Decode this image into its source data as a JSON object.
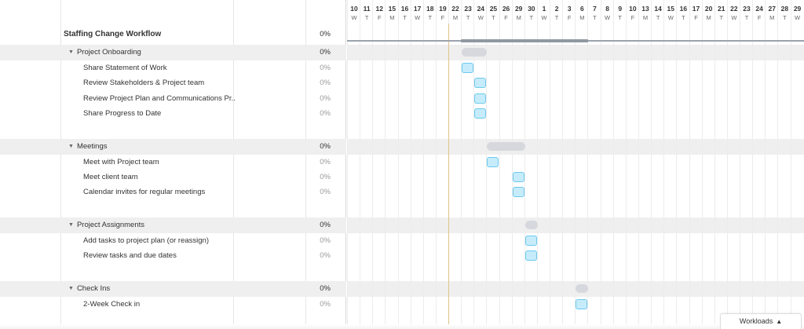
{
  "project": {
    "name": "Staffing Change Workflow",
    "percent": "0%"
  },
  "groups": [
    {
      "name": "Project Onboarding",
      "percent": "0%",
      "tasks": [
        {
          "name": "Share Statement of Work",
          "percent": "0%"
        },
        {
          "name": "Review Stakeholders & Project team",
          "percent": "0%"
        },
        {
          "name": "Review Project Plan and Communications Pr...",
          "percent": "0%"
        },
        {
          "name": "Share Progress to Date",
          "percent": "0%"
        }
      ]
    },
    {
      "name": "Meetings",
      "percent": "0%",
      "tasks": [
        {
          "name": "Meet with Project team",
          "percent": "0%"
        },
        {
          "name": "Meet client team",
          "percent": "0%"
        },
        {
          "name": "Calendar invites for regular meetings",
          "percent": "0%"
        }
      ]
    },
    {
      "name": "Project Assignments",
      "percent": "0%",
      "tasks": [
        {
          "name": "Add tasks to project plan (or reassign)",
          "percent": "0%"
        },
        {
          "name": "Review tasks and due dates",
          "percent": "0%"
        }
      ]
    },
    {
      "name": "Check Ins",
      "percent": "0%",
      "tasks": [
        {
          "name": "2-Week Check in",
          "percent": "0%"
        }
      ]
    }
  ],
  "timeline": {
    "days": [
      "10",
      "11",
      "12",
      "15",
      "16",
      "17",
      "18",
      "19",
      "22",
      "23",
      "24",
      "25",
      "26",
      "29",
      "30",
      "1",
      "2",
      "3",
      "6",
      "7",
      "8",
      "9",
      "10",
      "13",
      "14",
      "15",
      "16",
      "17",
      "20",
      "21",
      "22",
      "23",
      "24",
      "27",
      "28",
      "29"
    ],
    "weekdays": [
      "W",
      "T",
      "F",
      "M",
      "T",
      "W",
      "T",
      "F",
      "M",
      "T",
      "W",
      "T",
      "F",
      "M",
      "T",
      "W",
      "T",
      "F",
      "M",
      "T",
      "W",
      "T",
      "F",
      "M",
      "T",
      "W",
      "T",
      "F",
      "M",
      "T",
      "W",
      "T",
      "F",
      "M",
      "T",
      "W"
    ]
  },
  "workloads_label": "Workloads",
  "workloads_icon": "triangle-up-icon"
}
